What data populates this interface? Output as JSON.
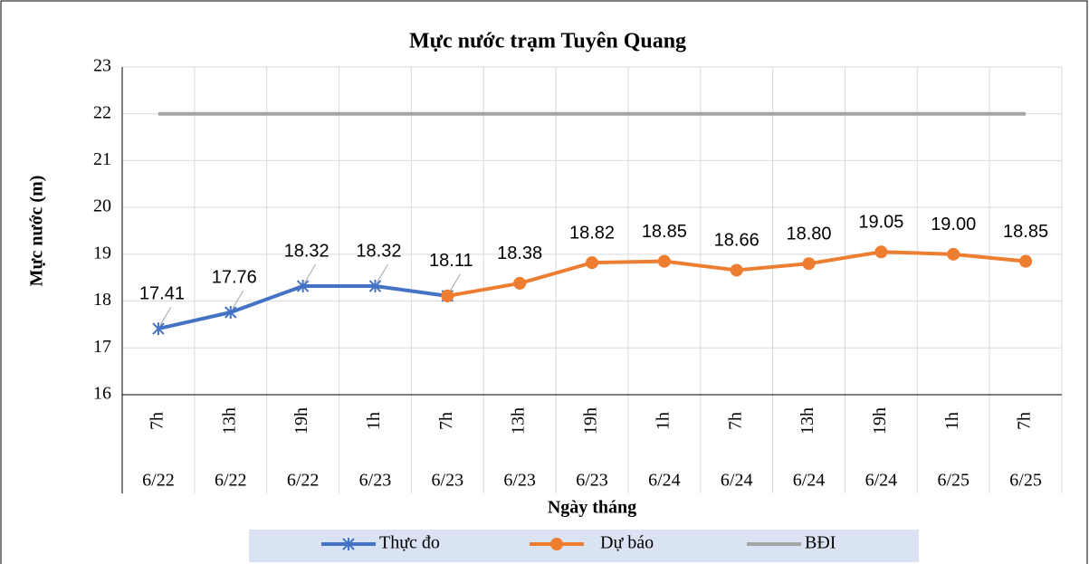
{
  "chart_data": {
    "type": "line",
    "title": "Mực nước trạm Tuyên Quang",
    "x_label": "Ngày tháng",
    "y_label": "Mực nước (m)",
    "categories": [
      "7h",
      "13h",
      "19h",
      "1h",
      "7h",
      "13h",
      "19h",
      "1h",
      "7h",
      "13h",
      "19h",
      "1h",
      "7h"
    ],
    "dates": [
      "6/22",
      "6/22",
      "6/22",
      "6/23",
      "6/23",
      "6/23",
      "6/23",
      "6/24",
      "6/24",
      "6/24",
      "6/24",
      "6/25",
      "6/25"
    ],
    "series": [
      {
        "name": "Thực đo",
        "color": "#4472c4",
        "marker": "star",
        "values": [
          17.41,
          17.76,
          18.32,
          18.32,
          18.11,
          null,
          null,
          null,
          null,
          null,
          null,
          null,
          null
        ],
        "value_labels": [
          "17.41",
          "17.76",
          "18.32",
          "18.32",
          "18.11",
          null,
          null,
          null,
          null,
          null,
          null,
          null,
          null
        ]
      },
      {
        "name": "Dự báo",
        "color": "#ed7d31",
        "marker": "circle",
        "values": [
          null,
          null,
          null,
          null,
          18.11,
          18.38,
          18.82,
          18.85,
          18.66,
          18.8,
          19.05,
          19.0,
          18.85
        ],
        "value_labels": [
          null,
          null,
          null,
          null,
          null,
          "18.38",
          "18.82",
          "18.85",
          "18.66",
          "18.80",
          "19.05",
          "19.00",
          "18.85"
        ]
      },
      {
        "name": "BĐI",
        "color": "#a5a5a5",
        "marker": "none",
        "values": [
          22,
          22,
          22,
          22,
          22,
          22,
          22,
          22,
          22,
          22,
          22,
          22,
          22
        ]
      }
    ],
    "ylim": [
      16,
      23
    ],
    "yticks": [
      16,
      17,
      18,
      19,
      20,
      21,
      22,
      23
    ],
    "grid": true,
    "legend": "bottom"
  }
}
